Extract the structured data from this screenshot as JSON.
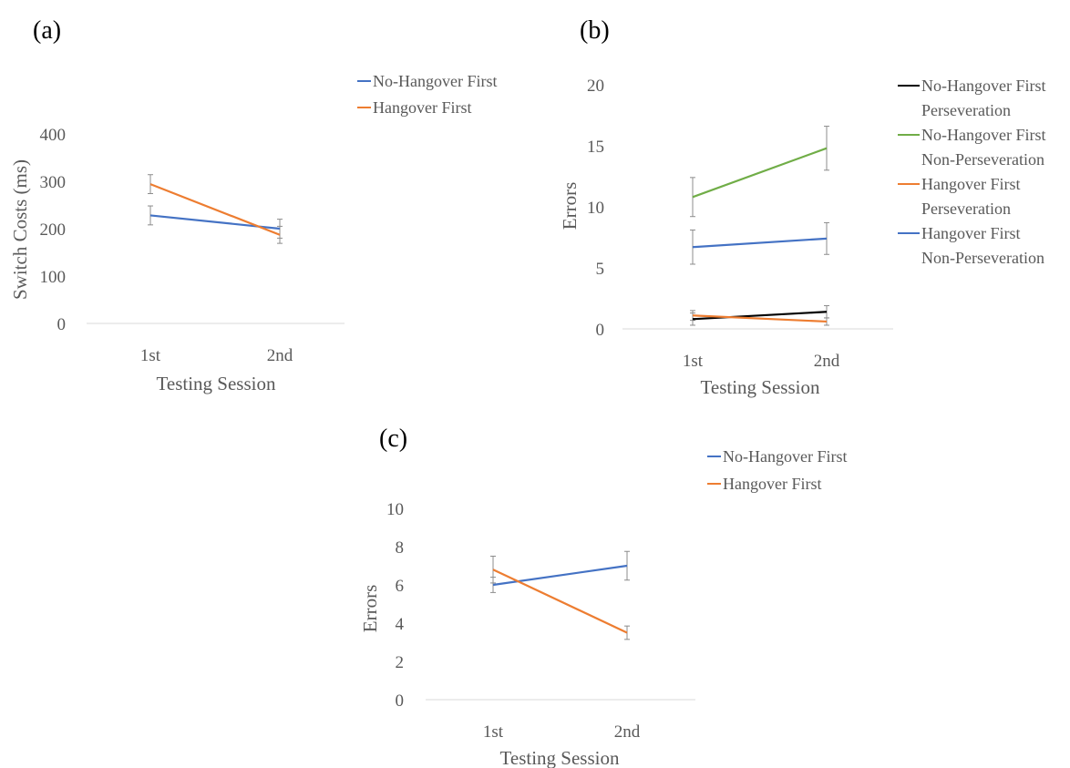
{
  "chart_data": [
    {
      "panel_label": "(a)",
      "type": "line",
      "xlabel": "Testing Session",
      "ylabel": "Switch Costs (ms)",
      "categories": [
        "1st",
        "2nd"
      ],
      "ylim": [
        0,
        400
      ],
      "yticks": [
        "0",
        "100",
        "200",
        "300",
        "400"
      ],
      "grid": false,
      "legend_position": "top-right",
      "series": [
        {
          "name": "No-Hangover First",
          "color": "#4472C4",
          "values": [
            228,
            200
          ],
          "errors": [
            20,
            20
          ]
        },
        {
          "name": "Hangover First",
          "color": "#ED7D31",
          "values": [
            294,
            187
          ],
          "errors": [
            20,
            18
          ]
        }
      ]
    },
    {
      "panel_label": "(b)",
      "type": "line",
      "xlabel": "Testing Session",
      "ylabel": "Errors",
      "categories": [
        "1st",
        "2nd"
      ],
      "ylim": [
        0,
        20
      ],
      "yticks": [
        "0",
        "5",
        "10",
        "15",
        "20"
      ],
      "grid": false,
      "legend_position": "right",
      "series": [
        {
          "name_lines": [
            "No-Hangover First",
            "Perseveration"
          ],
          "color": "#000000",
          "values": [
            0.8,
            1.4
          ],
          "errors": [
            0.5,
            0.5
          ]
        },
        {
          "name_lines": [
            "No-Hangover First",
            "Non-Perseveration"
          ],
          "color": "#70AD47",
          "values": [
            10.8,
            14.8
          ],
          "errors": [
            1.6,
            1.8
          ]
        },
        {
          "name_lines": [
            "Hangover First",
            "Perseveration"
          ],
          "color": "#ED7D31",
          "values": [
            1.1,
            0.6
          ],
          "errors": [
            0.4,
            0.3
          ]
        },
        {
          "name_lines": [
            "Hangover First",
            "Non-Perseveration"
          ],
          "color": "#4472C4",
          "values": [
            6.7,
            7.4
          ],
          "errors": [
            1.4,
            1.3
          ]
        }
      ]
    },
    {
      "panel_label": "(c)",
      "type": "line",
      "xlabel": "Testing Session",
      "ylabel": "Errors",
      "categories": [
        "1st",
        "2nd"
      ],
      "ylim": [
        0,
        10
      ],
      "yticks": [
        "0",
        "2",
        "4",
        "6",
        "8",
        "10"
      ],
      "grid": false,
      "legend_position": "top-right",
      "series": [
        {
          "name": "No-Hangover First",
          "color": "#4472C4",
          "values": [
            6.0,
            7.0
          ],
          "errors": [
            0.4,
            0.75
          ]
        },
        {
          "name": "Hangover First",
          "color": "#ED7D31",
          "values": [
            6.8,
            3.5
          ],
          "errors": [
            0.7,
            0.35
          ]
        }
      ]
    }
  ]
}
